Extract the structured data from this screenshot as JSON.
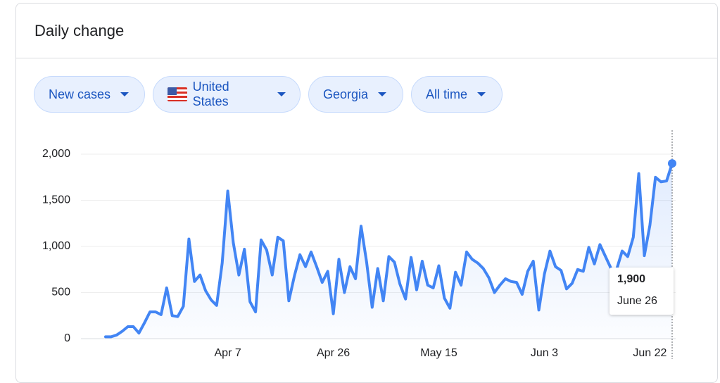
{
  "header": {
    "title": "Daily change"
  },
  "filters": [
    {
      "label": "New cases"
    },
    {
      "label": "United States"
    },
    {
      "label": "Georgia"
    },
    {
      "label": "All time"
    }
  ],
  "chart_data": {
    "type": "line",
    "categories": [
      null,
      null,
      null,
      null,
      null,
      null,
      null,
      null,
      null,
      null,
      null,
      null,
      null,
      null,
      null,
      null,
      null,
      null,
      null,
      null,
      null,
      null,
      "Apr 7",
      null,
      null,
      null,
      null,
      null,
      null,
      null,
      null,
      null,
      null,
      null,
      null,
      null,
      null,
      null,
      null,
      null,
      null,
      "Apr 26",
      null,
      null,
      null,
      null,
      null,
      null,
      null,
      null,
      null,
      null,
      null,
      null,
      null,
      null,
      null,
      null,
      null,
      null,
      "May 15",
      null,
      null,
      null,
      null,
      null,
      null,
      null,
      null,
      null,
      null,
      null,
      null,
      null,
      null,
      null,
      null,
      null,
      null,
      "Jun 3",
      null,
      null,
      null,
      null,
      null,
      null,
      null,
      null,
      null,
      null,
      null,
      null,
      null,
      null,
      null,
      null,
      null,
      null,
      "Jun 22",
      null,
      null,
      null,
      null
    ],
    "series": [
      {
        "name": "New cases",
        "color": "#4285f4",
        "values": [
          20,
          20,
          40,
          80,
          130,
          130,
          60,
          170,
          290,
          290,
          260,
          550,
          250,
          240,
          350,
          1080,
          620,
          690,
          520,
          420,
          360,
          820,
          1600,
          1040,
          690,
          970,
          400,
          290,
          1070,
          960,
          690,
          1100,
          1060,
          410,
          680,
          910,
          780,
          940,
          780,
          610,
          730,
          270,
          860,
          500,
          780,
          650,
          1220,
          830,
          340,
          760,
          410,
          890,
          830,
          590,
          430,
          880,
          530,
          840,
          580,
          550,
          790,
          440,
          330,
          720,
          580,
          940,
          860,
          820,
          760,
          660,
          500,
          580,
          650,
          620,
          610,
          480,
          730,
          840,
          310,
          700,
          950,
          780,
          740,
          540,
          600,
          750,
          730,
          990,
          810,
          1020,
          890,
          760,
          750,
          950,
          890,
          1100,
          1790,
          900,
          1230,
          1750,
          1700,
          1710,
          1900
        ]
      }
    ],
    "ylim": [
      0,
      2000
    ],
    "yticks": [
      0,
      500,
      {
        "value": 1000,
        "label": "1,000"
      },
      {
        "value": 1500,
        "label": "1,500"
      },
      {
        "value": 2000,
        "label": "2,000"
      }
    ],
    "grid": true,
    "tooltip": {
      "label": "1,900",
      "date": "June 26"
    }
  }
}
